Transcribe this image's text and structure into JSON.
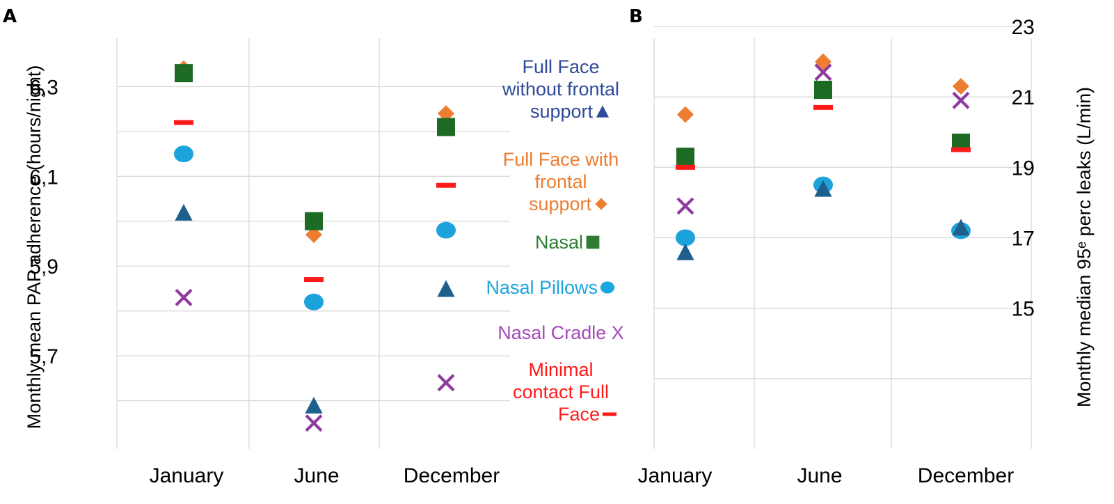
{
  "colors": {
    "full_face_without_frontal": "#1f5f8b",
    "full_face_with_frontal": "#ed7d31",
    "nasal": "#1d6b22",
    "nasal_pillows": "#1ca3dc",
    "nasal_cradle": "#8e3b9e",
    "minimal_contact": "#ff1a1a",
    "legend_full_face_without_frontal": "#2e4a9a",
    "legend_full_face_with_frontal": "#ed7d31",
    "legend_nasal": "#2e7d32",
    "legend_nasal_pillows": "#1aa6df",
    "legend_nasal_cradle": "#a349b8",
    "legend_minimal_contact": "#ff1a1a"
  },
  "legend": {
    "items": [
      {
        "key": "full_face_without_frontal",
        "lines": [
          "Full Face",
          "without frontal",
          "support"
        ],
        "marker": "triangle"
      },
      {
        "key": "full_face_with_frontal",
        "lines": [
          "Full Face with",
          "frontal",
          "support"
        ],
        "marker": "diamond"
      },
      {
        "key": "nasal",
        "lines": [
          "Nasal"
        ],
        "marker": "square"
      },
      {
        "key": "nasal_pillows",
        "lines": [
          "Nasal Pillows"
        ],
        "marker": "circle"
      },
      {
        "key": "nasal_cradle",
        "lines": [
          "Nasal Cradle X"
        ],
        "marker": "none"
      },
      {
        "key": "minimal_contact",
        "lines": [
          "Minimal",
          "contact Full",
          "Face"
        ],
        "marker": "dash"
      }
    ]
  },
  "chart_data": [
    {
      "panel": "A",
      "type": "scatter",
      "ylabel": "Monthly mean PAP adherence (hours/night)",
      "categories": [
        "January",
        "June",
        "December"
      ],
      "ylim": [
        5.5,
        6.4
      ],
      "yticks": [
        5.7,
        5.9,
        6.1,
        6.3
      ],
      "ytick_labels": [
        "5,7",
        "5,9",
        "6,1",
        "6,3"
      ],
      "grid_values": [
        5.6,
        5.7,
        5.8,
        5.9,
        6.0,
        6.1,
        6.2,
        6.3
      ],
      "axis_side": "left",
      "series": [
        {
          "key": "full_face_with_frontal",
          "marker": "diamond",
          "values": [
            6.34,
            5.97,
            6.24
          ]
        },
        {
          "key": "nasal",
          "marker": "square",
          "values": [
            6.33,
            6.0,
            6.21
          ]
        },
        {
          "key": "minimal_contact",
          "marker": "dash",
          "values": [
            6.22,
            5.87,
            6.08
          ]
        },
        {
          "key": "nasal_pillows",
          "marker": "circle",
          "values": [
            6.15,
            5.82,
            5.98
          ]
        },
        {
          "key": "full_face_without_frontal",
          "marker": "triangle",
          "values": [
            6.02,
            5.59,
            5.85
          ]
        },
        {
          "key": "nasal_cradle",
          "marker": "cross",
          "values": [
            5.83,
            5.55,
            5.64
          ]
        }
      ]
    },
    {
      "panel": "B",
      "type": "scatter",
      "ylabel": "Monthly median 95ᵉ perc leaks (L/min)",
      "categories": [
        "January",
        "June",
        "December"
      ],
      "ylim": [
        11,
        23
      ],
      "yticks": [
        15,
        17,
        19,
        21,
        23
      ],
      "ytick_labels": [
        "15",
        "17",
        "19",
        "21",
        "23"
      ],
      "grid_values": [
        13,
        15,
        17,
        19,
        21,
        23
      ],
      "axis_side": "right",
      "series": [
        {
          "key": "full_face_with_frontal",
          "marker": "diamond",
          "values": [
            20.5,
            22.0,
            21.3
          ]
        },
        {
          "key": "nasal_cradle",
          "marker": "cross",
          "values": [
            17.9,
            21.7,
            20.9
          ]
        },
        {
          "key": "nasal",
          "marker": "square",
          "values": [
            19.3,
            21.2,
            19.7
          ]
        },
        {
          "key": "minimal_contact",
          "marker": "dash",
          "values": [
            19.0,
            20.7,
            19.5
          ]
        },
        {
          "key": "nasal_pillows",
          "marker": "circle",
          "values": [
            17.0,
            18.5,
            17.2
          ]
        },
        {
          "key": "full_face_without_frontal",
          "marker": "triangle",
          "values": [
            16.6,
            18.4,
            17.3
          ]
        }
      ]
    }
  ]
}
